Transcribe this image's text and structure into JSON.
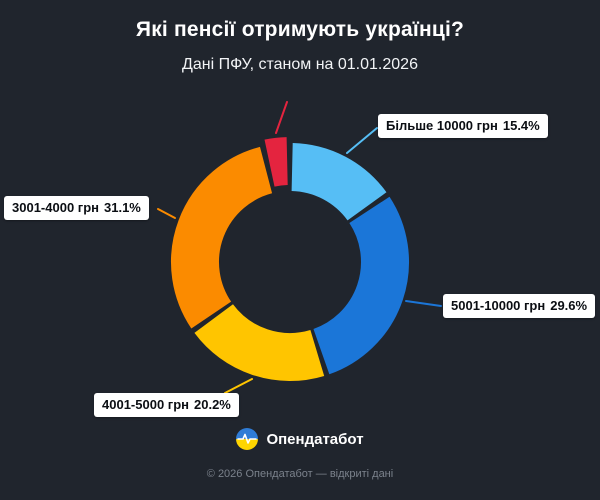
{
  "header": {
    "title": "Які пенсії отримують українці?",
    "subtitle": "Дані ПФУ, станом на 01.01.2026"
  },
  "chart_data": {
    "type": "pie",
    "variant": "donut",
    "title": "Які пенсії отримують українці?",
    "subtitle": "Дані ПФУ, станом на 01.01.2026",
    "unit": "%",
    "start_angle_deg": 0,
    "clockwise": true,
    "segments": [
      {
        "label": "Більше 10000 грн",
        "value": 15.4,
        "pct_label": "15.4%",
        "color": "#56BEF5"
      },
      {
        "label": "5001-10000 грн",
        "value": 29.6,
        "pct_label": "29.6%",
        "color": "#1B76D8"
      },
      {
        "label": "4001-5000 грн",
        "value": 20.2,
        "pct_label": "20.2%",
        "color": "#FFC500"
      },
      {
        "label": "3001-4000 грн",
        "value": 31.1,
        "pct_label": "31.1%",
        "color": "#FB8B00"
      },
      {
        "label": "",
        "value": 3.7,
        "pct_label": "",
        "color": "#E4243F"
      }
    ],
    "background_color": "#20252d",
    "legend_position": "callout-labels"
  },
  "footer": {
    "brand": "Опендатабот",
    "copyright": "© 2026 Опендатабот — відкриті дані"
  },
  "icons": {
    "logo": "opendatabot-pulse-circle"
  }
}
